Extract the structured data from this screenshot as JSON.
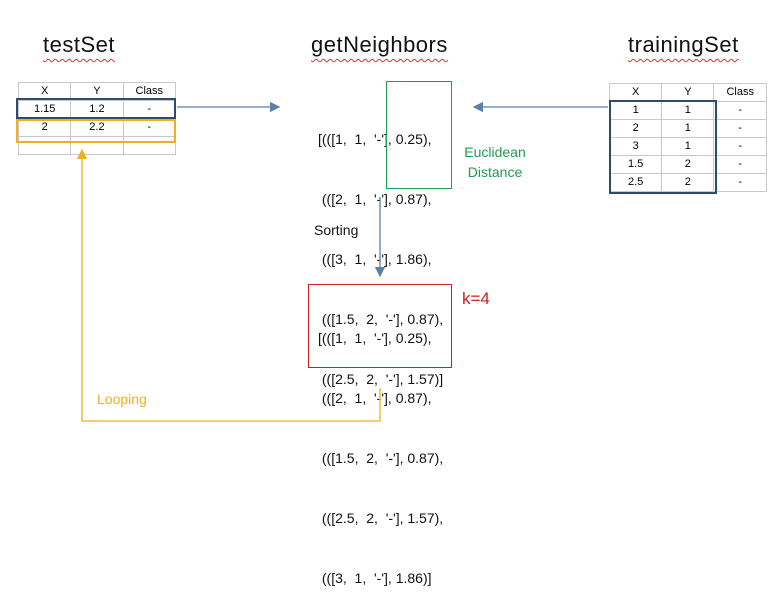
{
  "titles": {
    "test_set": "testSet",
    "get_neighbors": "getNeighbors",
    "training_set": "trainingSet"
  },
  "test_set": {
    "headers": [
      "X",
      "Y",
      "Class"
    ],
    "rows": [
      [
        "1.15",
        "1.2",
        "-"
      ],
      [
        "2",
        "2.2",
        "-"
      ]
    ]
  },
  "training_set": {
    "headers": [
      "X",
      "Y",
      "Class"
    ],
    "rows": [
      [
        "1",
        "1",
        "-"
      ],
      [
        "2",
        "1",
        "-"
      ],
      [
        "3",
        "1",
        "-"
      ],
      [
        "1.5",
        "2",
        "-"
      ],
      [
        "2.5",
        "2",
        "-"
      ]
    ]
  },
  "distances": {
    "lines": [
      "[(([1,  1,  '-'], 0.25),",
      " (([2,  1,  '-'], 0.87),",
      " (([3,  1,  '-'], 1.86),",
      " (([1.5,  2,  '-'], 0.87),",
      " (([2.5,  2,  '-'], 1.57)]"
    ]
  },
  "sorted": {
    "lines": [
      "[(([1,  1,  '-'], 0.25),",
      " (([2,  1,  '-'], 0.87),",
      " (([1.5,  2,  '-'], 0.87),",
      " (([2.5,  2,  '-'], 1.57),",
      " (([3,  1,  '-'], 1.86)]"
    ]
  },
  "labels": {
    "euclidean_line1": "Euclidean",
    "euclidean_line2": "Distance",
    "sorting": "Sorting",
    "k": "k=4",
    "looping": "Looping"
  },
  "colors": {
    "navy": "#2e4a6e",
    "gold": "#f0b01c",
    "green": "#1c9e50",
    "red": "#cc2020",
    "arrow": "#5b7fa6"
  }
}
